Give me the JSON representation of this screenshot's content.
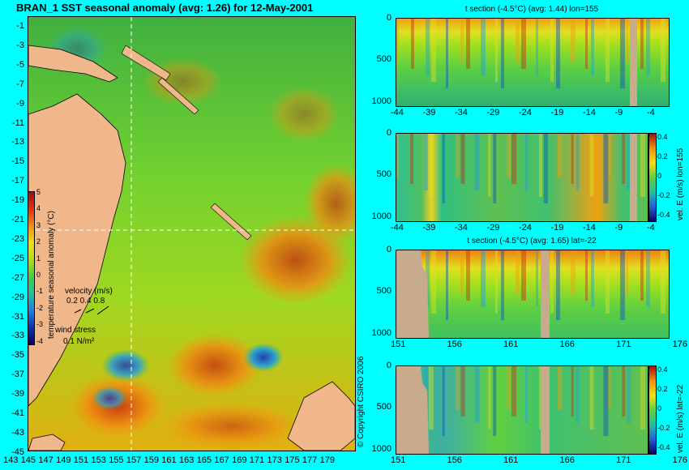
{
  "map": {
    "title": "BRAN_1 SST seasonal anomaly (avg: 1.26) for 12-May-2001",
    "y_ticks": [
      "-1",
      "-3",
      "-5",
      "-7",
      "-9",
      "-11",
      "-13",
      "-15",
      "-17",
      "-19",
      "-21",
      "-23",
      "-25",
      "-27",
      "-29",
      "-31",
      "-33",
      "-35",
      "-37",
      "-39",
      "-41",
      "-43",
      "-45"
    ],
    "x_ticks": [
      "143",
      "145",
      "147",
      "149",
      "151",
      "153",
      "155",
      "157",
      "159",
      "161",
      "163",
      "165",
      "167",
      "169",
      "171",
      "173",
      "175",
      "177",
      "179"
    ],
    "colorbar_ticks": [
      "5",
      "4",
      "3",
      "2",
      "1",
      "0",
      "-1",
      "-2",
      "-3",
      "-4"
    ],
    "colorbar_label": "temperature seasonal anomaly (°C)",
    "velocity_label": "velocity (m/s)",
    "velocity_scale": "0.2 0.4 0.8",
    "wind_label": "wind stress",
    "wind_scale": "0.1 N/m²",
    "copyright": "© Copyright CSIRO 2006",
    "chart_data": {
      "type": "heatmap",
      "title": "BRAN_1 SST seasonal anomaly (avg: 1.26) for 12-May-2001",
      "xlim": [
        143,
        180
      ],
      "ylim": [
        -45,
        0
      ],
      "colorbar_range": [
        -4,
        5
      ],
      "crosshair_lon": 155,
      "crosshair_lat": -22
    }
  },
  "panels": [
    {
      "title": "t section (-4.5°C) (avg: 1.44) lon=155",
      "x_ticks": [
        "-44",
        "-39",
        "-34",
        "-29",
        "-24",
        "-19",
        "-14",
        "-9",
        "-4"
      ],
      "y_ticks": [
        "0",
        "500",
        "1000"
      ],
      "colorbar": null
    },
    {
      "title": "",
      "x_ticks": [
        "-44",
        "-39",
        "-34",
        "-29",
        "-24",
        "-19",
        "-14",
        "-9",
        "-4"
      ],
      "y_ticks": [
        "0",
        "500",
        "1000"
      ],
      "colorbar": {
        "ticks": [
          "0.4",
          "0.2",
          "0",
          "-0.2",
          "-0.4"
        ],
        "label": "vel. E (m/s) lon=155"
      }
    },
    {
      "title": "t section (-4.5°C) (avg: 1.65) lat=-22",
      "x_ticks": [
        "151",
        "156",
        "161",
        "166",
        "171",
        "176"
      ],
      "y_ticks": [
        "0",
        "500",
        "1000"
      ],
      "colorbar": null
    },
    {
      "title": "",
      "x_ticks": [
        "151",
        "156",
        "161",
        "166",
        "171",
        "176"
      ],
      "y_ticks": [
        "0",
        "500",
        "1000"
      ],
      "colorbar": {
        "ticks": [
          "0.4",
          "0.2",
          "0",
          "-0.2",
          "-0.4"
        ],
        "label": "vel. E (m/s) lat=-22"
      }
    }
  ],
  "colors": {
    "background": "#00ffff",
    "land": "#f0b88a",
    "section_land": "#c8aa8c"
  }
}
